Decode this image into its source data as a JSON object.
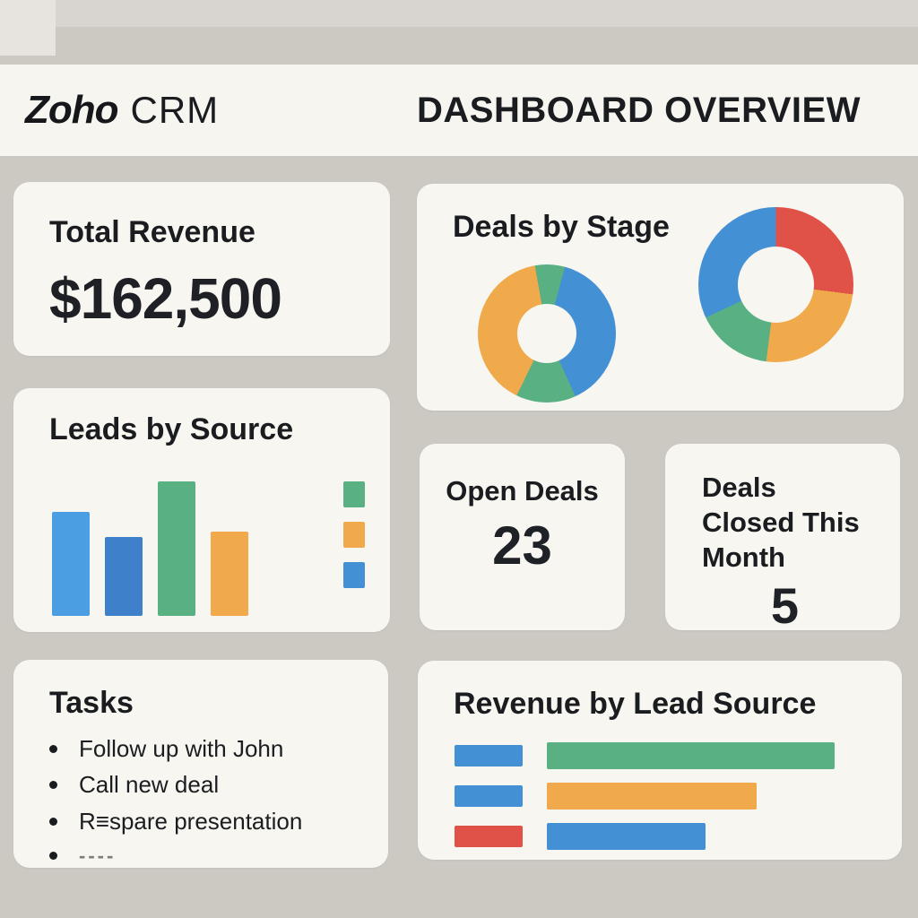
{
  "header": {
    "brand_bold": "Zoho",
    "brand_regular": "CRM",
    "title": "DASHBOARD OVERVIEW"
  },
  "cards": {
    "total_revenue": {
      "title": "Total Revenue",
      "value": "$162,500"
    },
    "deals_by_stage": {
      "title": "Deals by Stage"
    },
    "leads_by_source": {
      "title": "Leads by Source"
    },
    "open_deals": {
      "title": "Open Deals",
      "value": "23"
    },
    "deals_closed": {
      "title": "Deals Closed This Month",
      "value": "5"
    },
    "tasks": {
      "title": "Tasks",
      "items": [
        "Follow up with John",
        "Call new deal",
        "R≡spare presentation",
        "----"
      ]
    },
    "revenue_by_lead_source": {
      "title": "Revenue by Lead Source"
    }
  },
  "colors": {
    "page_bg": "#CCC9C3",
    "card_bg": "#F8F6F0",
    "header_bg": "#F7F5EF",
    "text": "#1A1C20",
    "muted": "#7E7C78",
    "blue": "#4390D4",
    "light_blue": "#4C9EE2",
    "dark_blue": "#3F80CA",
    "green": "#59B083",
    "orange": "#F0AA4B",
    "red": "#E05247"
  },
  "chart_data": [
    {
      "type": "pie",
      "donut": true,
      "title": "Deals by Stage — left donut (no labels shown)",
      "start_angle_deg": -10,
      "legend_position": "none",
      "series": [
        {
          "color": "green",
          "value": 7
        },
        {
          "color": "blue",
          "value": 39
        },
        {
          "color": "green",
          "value": 14
        },
        {
          "color": "orange",
          "value": 40
        }
      ]
    },
    {
      "type": "pie",
      "donut": true,
      "title": "Deals by Stage — right donut (no labels shown)",
      "start_angle_deg": 0,
      "legend_position": "none",
      "series": [
        {
          "color": "red",
          "value": 27
        },
        {
          "color": "orange",
          "value": 25
        },
        {
          "color": "green",
          "value": 16
        },
        {
          "color": "blue",
          "value": 32
        }
      ]
    },
    {
      "type": "bar",
      "title": "Leads by Source",
      "xlabel": "",
      "ylabel": "",
      "categories": [
        "bar-1",
        "bar-2",
        "bar-3",
        "bar-4"
      ],
      "values": [
        114,
        87,
        148,
        93
      ],
      "max": 148,
      "colors": [
        "light_blue",
        "dark_blue",
        "green",
        "orange"
      ],
      "grid": false,
      "legend_swatches": [
        "green",
        "orange",
        "blue"
      ],
      "note": "no axis tick labels or numeric labels visible; values are relative bar heights in px"
    },
    {
      "type": "bar",
      "orientation": "horizontal",
      "title": "Revenue by Lead Source",
      "grid": false,
      "rows": [
        {
          "swatch": "blue",
          "bar": "green",
          "length_pct": 100
        },
        {
          "swatch": "blue",
          "bar": "orange",
          "length_pct": 73
        },
        {
          "swatch": "red",
          "bar": "blue",
          "length_pct": 55
        }
      ],
      "note": "no axis labels or numeric labels visible; lengths are relative"
    }
  ]
}
